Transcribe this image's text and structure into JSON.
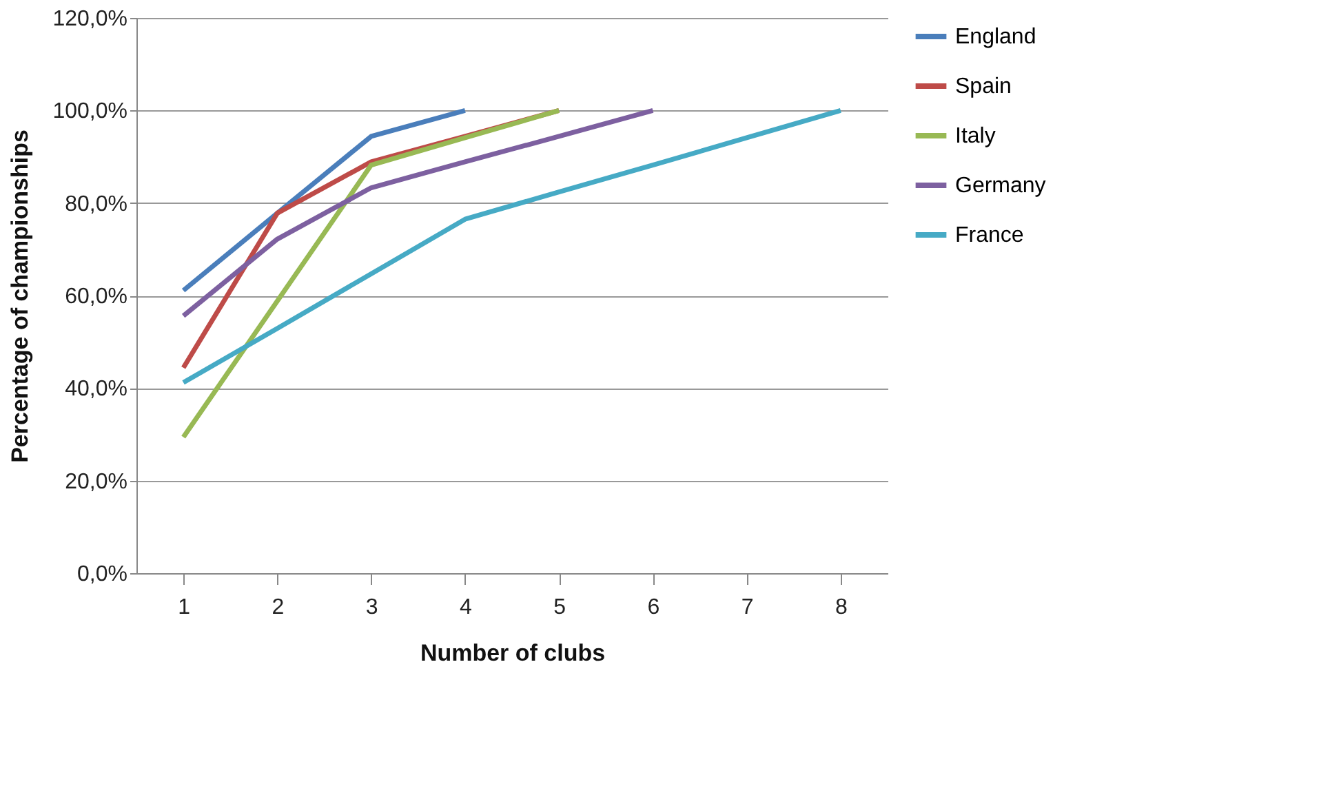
{
  "chart_data": {
    "type": "line",
    "xlabel": "Number of clubs",
    "ylabel": "Percentage of championships",
    "categories": [
      "1",
      "2",
      "3",
      "4",
      "5",
      "6",
      "7",
      "8"
    ],
    "series": [
      {
        "name": "England",
        "color": "#4a7ebb",
        "values": [
          61.1,
          77.8,
          94.4,
          100,
          null,
          null,
          null,
          null
        ]
      },
      {
        "name": "Spain",
        "color": "#be4b48",
        "values": [
          44.4,
          77.8,
          88.9,
          94.4,
          100,
          null,
          null,
          null
        ]
      },
      {
        "name": "Italy",
        "color": "#98b954",
        "values": [
          29.4,
          58.8,
          88.2,
          94.1,
          100,
          null,
          null,
          null
        ]
      },
      {
        "name": "Germany",
        "color": "#7d60a0",
        "values": [
          55.6,
          72.2,
          83.3,
          88.9,
          94.4,
          100,
          null,
          null
        ]
      },
      {
        "name": "France",
        "color": "#46aac5",
        "values": [
          41.2,
          52.9,
          64.7,
          76.5,
          82.4,
          88.2,
          94.1,
          100
        ]
      }
    ],
    "ylim": [
      0,
      120
    ],
    "yticks": [
      {
        "value": 0,
        "label": "0,0%"
      },
      {
        "value": 20,
        "label": "20,0%"
      },
      {
        "value": 40,
        "label": "40,0%"
      },
      {
        "value": 60,
        "label": "60,0%"
      },
      {
        "value": 80,
        "label": "80,0%"
      },
      {
        "value": 100,
        "label": "100,0%"
      },
      {
        "value": 120,
        "label": "120,0%"
      }
    ],
    "grid": "y",
    "legend": "right",
    "marker": "none",
    "line_style": "solid"
  }
}
